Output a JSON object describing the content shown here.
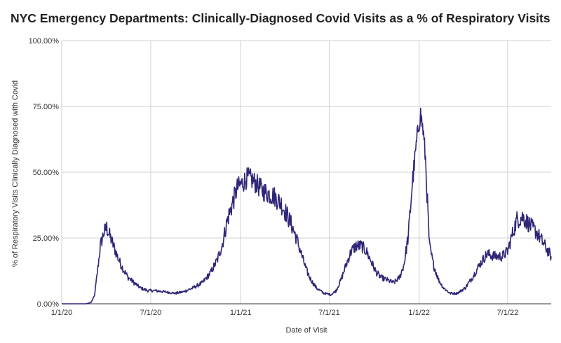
{
  "chart_data": {
    "type": "line",
    "title": "NYC Emergency Departments: Clinically-Diagnosed Covid Visits as a % of Respiratory Visits",
    "xlabel": "Date of Visit",
    "ylabel": "% of Respiratory Visits Clinically Diagnosed with Covid",
    "y_ticks": [
      "0.00%",
      "25.00%",
      "50.00%",
      "75.00%",
      "100.00%"
    ],
    "x_ticks": [
      "1/1/20",
      "7/1/20",
      "1/1/21",
      "7/1/21",
      "1/1/22",
      "7/1/22"
    ],
    "ylim": [
      0,
      100
    ],
    "xlim": [
      "2020-01-01",
      "2022-09-28"
    ],
    "grid": true,
    "series": [
      {
        "color": "#2e2676",
        "points": [
          [
            "2020-01-01",
            0
          ],
          [
            "2020-02-20",
            0
          ],
          [
            "2020-03-01",
            0.5
          ],
          [
            "2020-03-08",
            3
          ],
          [
            "2020-03-14",
            12
          ],
          [
            "2020-03-20",
            22
          ],
          [
            "2020-03-27",
            27
          ],
          [
            "2020-04-02",
            29
          ],
          [
            "2020-04-08",
            26
          ],
          [
            "2020-04-16",
            22
          ],
          [
            "2020-04-26",
            17
          ],
          [
            "2020-05-06",
            13
          ],
          [
            "2020-05-16",
            10
          ],
          [
            "2020-05-28",
            8
          ],
          [
            "2020-06-10",
            6
          ],
          [
            "2020-06-25",
            5
          ],
          [
            "2020-07-10",
            5
          ],
          [
            "2020-08-01",
            4.5
          ],
          [
            "2020-08-20",
            4
          ],
          [
            "2020-09-05",
            4.5
          ],
          [
            "2020-09-25",
            6
          ],
          [
            "2020-10-15",
            8
          ],
          [
            "2020-11-01",
            12
          ],
          [
            "2020-11-15",
            17
          ],
          [
            "2020-11-25",
            23
          ],
          [
            "2020-12-05",
            32
          ],
          [
            "2020-12-15",
            38
          ],
          [
            "2020-12-25",
            44
          ],
          [
            "2021-01-05",
            46
          ],
          [
            "2021-01-15",
            48
          ],
          [
            "2021-01-25",
            47
          ],
          [
            "2021-02-05",
            45
          ],
          [
            "2021-02-15",
            43
          ],
          [
            "2021-02-25",
            42
          ],
          [
            "2021-03-10",
            41
          ],
          [
            "2021-03-25",
            38
          ],
          [
            "2021-04-05",
            34
          ],
          [
            "2021-04-15",
            30
          ],
          [
            "2021-04-25",
            25
          ],
          [
            "2021-05-05",
            19
          ],
          [
            "2021-05-15",
            13
          ],
          [
            "2021-05-25",
            9
          ],
          [
            "2021-06-05",
            6
          ],
          [
            "2021-06-20",
            4
          ],
          [
            "2021-07-05",
            3.5
          ],
          [
            "2021-07-15",
            5
          ],
          [
            "2021-07-25",
            9
          ],
          [
            "2021-08-05",
            15
          ],
          [
            "2021-08-15",
            20
          ],
          [
            "2021-08-25",
            22
          ],
          [
            "2021-09-05",
            22
          ],
          [
            "2021-09-15",
            20
          ],
          [
            "2021-09-25",
            16
          ],
          [
            "2021-10-05",
            12
          ],
          [
            "2021-10-15",
            10
          ],
          [
            "2021-10-28",
            9
          ],
          [
            "2021-11-10",
            8
          ],
          [
            "2021-11-22",
            10
          ],
          [
            "2021-12-01",
            15
          ],
          [
            "2021-12-10",
            26
          ],
          [
            "2021-12-18",
            46
          ],
          [
            "2021-12-25",
            58
          ],
          [
            "2021-12-31",
            68
          ],
          [
            "2022-01-04",
            72
          ],
          [
            "2022-01-09",
            66
          ],
          [
            "2022-01-14",
            55
          ],
          [
            "2022-01-18",
            38
          ],
          [
            "2022-01-22",
            22
          ],
          [
            "2022-01-30",
            15
          ],
          [
            "2022-02-10",
            9
          ],
          [
            "2022-02-20",
            6
          ],
          [
            "2022-03-05",
            4
          ],
          [
            "2022-03-20",
            4
          ],
          [
            "2022-04-05",
            6
          ],
          [
            "2022-04-20",
            10
          ],
          [
            "2022-05-05",
            15
          ],
          [
            "2022-05-20",
            19
          ],
          [
            "2022-06-05",
            18
          ],
          [
            "2022-06-20",
            18
          ],
          [
            "2022-07-01",
            20
          ],
          [
            "2022-07-10",
            26
          ],
          [
            "2022-07-20",
            32
          ],
          [
            "2022-08-01",
            33
          ],
          [
            "2022-08-15",
            30
          ],
          [
            "2022-08-30",
            27
          ],
          [
            "2022-09-15",
            22
          ],
          [
            "2022-09-28",
            18
          ]
        ]
      }
    ]
  }
}
